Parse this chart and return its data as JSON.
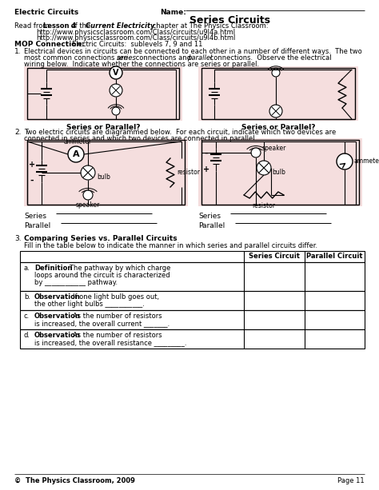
{
  "title": "Series Circuits",
  "header_left": "Electric Circuits",
  "header_right": "Name:",
  "url1": "http://www.physicsclassroom.com/Class/circuits/u9l4a.html",
  "url2": "http://www.physicsclassroom.com/Class/circuits/u9l4b.html",
  "mop_label": "MOP Connection:",
  "mop_text": "Electric Circuits:  sublevels 7, 9 and 11",
  "series_or_parallel": "Series or Parallel?",
  "series_label": "Series",
  "parallel_label": "Parallel",
  "q3_title": "Comparing Series vs. Parallel Circuits",
  "q3_sub": "Fill in the table below to indicate the manner in which series and parallel circuits differ.",
  "col1": "Series Circuit",
  "col2": "Parallel Circuit",
  "footer_left": "©  The Physics Classroom, 2009",
  "footer_right": "Page 11",
  "bg_circuit": "#f5dede",
  "bg_white": "#ffffff"
}
